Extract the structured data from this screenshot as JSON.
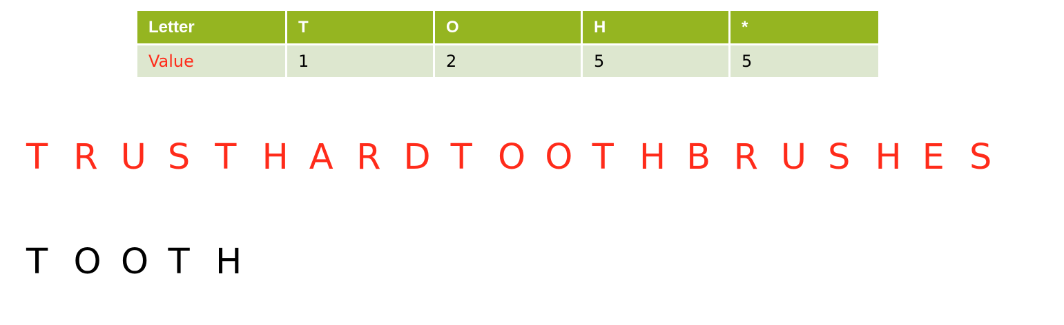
{
  "table": {
    "header": {
      "label": "Letter",
      "cells": [
        "T",
        "O",
        "H",
        "*"
      ]
    },
    "row": {
      "label": "Value",
      "cells": [
        "1",
        "2",
        "5",
        "5"
      ]
    }
  },
  "phrase": {
    "letters": [
      "T",
      "R",
      "U",
      "S",
      "T",
      "H",
      "A",
      "R",
      "D",
      "T",
      "O",
      "O",
      "T",
      "H",
      "B",
      "R",
      "U",
      "S",
      "H",
      "E",
      "S"
    ]
  },
  "word": {
    "letters": [
      "T",
      "O",
      "O",
      "T",
      "H"
    ]
  },
  "colors": {
    "header_bg": "#95b521",
    "row_bg": "#dde7cf",
    "accent_red": "#ff2b1a"
  }
}
